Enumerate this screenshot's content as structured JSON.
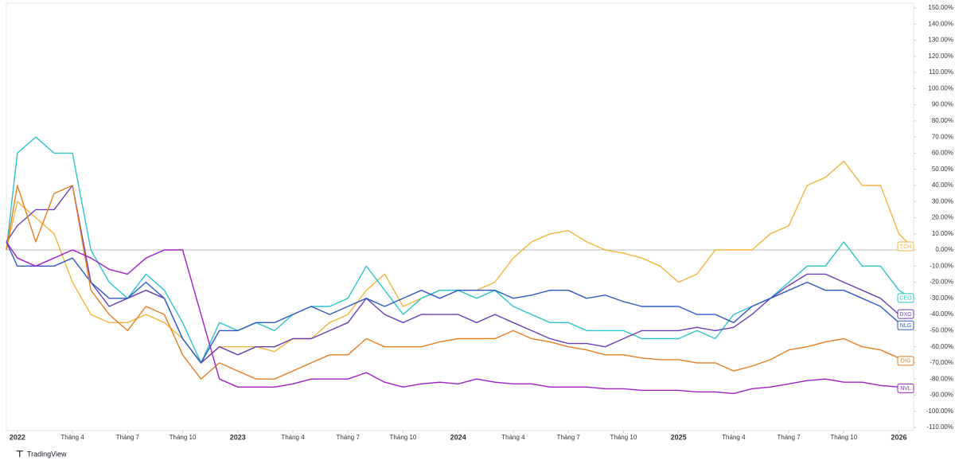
{
  "chart_data": {
    "type": "line",
    "watermark": "TradingView",
    "x": [
      -0.6,
      0,
      1,
      2,
      3,
      4,
      5,
      6,
      7,
      8,
      9,
      10,
      11,
      12,
      13,
      14,
      15,
      16,
      17,
      18,
      19,
      20,
      21,
      22,
      23,
      24,
      25,
      26,
      27,
      28,
      29,
      30,
      31,
      32,
      33,
      34,
      35,
      36,
      37,
      38,
      39,
      40,
      41,
      42,
      43,
      44,
      45,
      46,
      47,
      48,
      48.7
    ],
    "xlim": [
      -0.6,
      48.8
    ],
    "xticks": [
      {
        "value": 0,
        "label": "2022"
      },
      {
        "value": 3,
        "label": "Tháng 4"
      },
      {
        "value": 6,
        "label": "Tháng 7"
      },
      {
        "value": 9,
        "label": "Tháng 10"
      },
      {
        "value": 12,
        "label": "2023"
      },
      {
        "value": 15,
        "label": "Tháng 4"
      },
      {
        "value": 18,
        "label": "Tháng 7"
      },
      {
        "value": 21,
        "label": "Tháng 10"
      },
      {
        "value": 24,
        "label": "2024"
      },
      {
        "value": 27,
        "label": "Tháng 4"
      },
      {
        "value": 30,
        "label": "Tháng 7"
      },
      {
        "value": 33,
        "label": "Tháng 10"
      },
      {
        "value": 36,
        "label": "2025"
      },
      {
        "value": 39,
        "label": "Tháng 4"
      },
      {
        "value": 42,
        "label": "Tháng 7"
      },
      {
        "value": 45,
        "label": "Tháng 10"
      },
      {
        "value": 48,
        "label": "2026"
      }
    ],
    "ylim": [
      -110,
      150
    ],
    "yticks": [
      {
        "value": 150,
        "label": "150.00%"
      },
      {
        "value": 140,
        "label": "140.00%"
      },
      {
        "value": 130,
        "label": "130.00%"
      },
      {
        "value": 120,
        "label": "120.00%"
      },
      {
        "value": 110,
        "label": "110.00%"
      },
      {
        "value": 100,
        "label": "100.00%"
      },
      {
        "value": 90,
        "label": "90.00%"
      },
      {
        "value": 80,
        "label": "80.00%"
      },
      {
        "value": 70,
        "label": "70.00%"
      },
      {
        "value": 60,
        "label": "60.00%"
      },
      {
        "value": 50,
        "label": "50.00%"
      },
      {
        "value": 40,
        "label": "40.00%"
      },
      {
        "value": 30,
        "label": "30.00%"
      },
      {
        "value": 20,
        "label": "20.00%"
      },
      {
        "value": 10,
        "label": "10.00%"
      },
      {
        "value": 0,
        "label": "0.00%"
      },
      {
        "value": -10,
        "label": "-10.00%"
      },
      {
        "value": -20,
        "label": "-20.00%"
      },
      {
        "value": -30,
        "label": "-30.00%"
      },
      {
        "value": -40,
        "label": "-40.00%"
      },
      {
        "value": -50,
        "label": "-50.00%"
      },
      {
        "value": -60,
        "label": "-60.00%"
      },
      {
        "value": -70,
        "label": "-70.00%"
      },
      {
        "value": -80,
        "label": "-80.00%"
      },
      {
        "value": -90,
        "label": "-90.00%"
      },
      {
        "value": -100,
        "label": "-100.00%"
      },
      {
        "value": -110,
        "label": "-110.00%"
      }
    ],
    "series": [
      {
        "name": "TCH",
        "color": "#f2b53f",
        "values": [
          0,
          30,
          20,
          10,
          -20,
          -40,
          -45,
          -45,
          -40,
          -45,
          -55,
          -70,
          -60,
          -60,
          -60,
          -63,
          -55,
          -55,
          -45,
          -40,
          -25,
          -15,
          -35,
          -30,
          -25,
          -25,
          -25,
          -20,
          -5,
          5,
          10,
          12,
          5,
          0,
          -2,
          -5,
          -10,
          -20,
          -15,
          0,
          0,
          0,
          10,
          15,
          40,
          45,
          55,
          40,
          40,
          10,
          2
        ]
      },
      {
        "name": "CEO",
        "color": "#2ec4cc",
        "values": [
          0,
          60,
          70,
          60,
          60,
          0,
          -20,
          -30,
          -15,
          -25,
          -45,
          -70,
          -45,
          -50,
          -45,
          -50,
          -40,
          -35,
          -35,
          -30,
          -10,
          -25,
          -40,
          -30,
          -25,
          -25,
          -30,
          -25,
          -35,
          -40,
          -45,
          -45,
          -50,
          -50,
          -50,
          -55,
          -55,
          -55,
          -50,
          -55,
          -40,
          -35,
          -30,
          -20,
          -10,
          -10,
          5,
          -10,
          -10,
          -25,
          -30
        ]
      },
      {
        "name": "DXG",
        "color": "#6a3fb5",
        "values": [
          5,
          15,
          25,
          25,
          40,
          -20,
          -35,
          -30,
          -25,
          -30,
          -55,
          -70,
          -60,
          -65,
          -60,
          -60,
          -55,
          -55,
          -50,
          -45,
          -30,
          -40,
          -45,
          -40,
          -40,
          -40,
          -45,
          -40,
          -45,
          -50,
          -55,
          -58,
          -58,
          -60,
          -55,
          -50,
          -50,
          -50,
          -48,
          -50,
          -48,
          -40,
          -30,
          -22,
          -15,
          -15,
          -20,
          -25,
          -30,
          -40,
          -40
        ]
      },
      {
        "name": "NLG",
        "color": "#2f5bc4",
        "values": [
          5,
          -10,
          -10,
          -10,
          -5,
          -20,
          -30,
          -30,
          -20,
          -30,
          -55,
          -70,
          -50,
          -50,
          -45,
          -45,
          -40,
          -35,
          -40,
          -35,
          -30,
          -35,
          -30,
          -25,
          -30,
          -25,
          -25,
          -25,
          -30,
          -28,
          -25,
          -25,
          -30,
          -28,
          -32,
          -35,
          -35,
          -35,
          -40,
          -40,
          -45,
          -35,
          -30,
          -25,
          -20,
          -25,
          -25,
          -30,
          -35,
          -45,
          -47
        ]
      },
      {
        "name": "DIG",
        "color": "#e67e22",
        "values": [
          0,
          40,
          5,
          35,
          40,
          -25,
          -40,
          -50,
          -35,
          -40,
          -65,
          -80,
          -70,
          -75,
          -80,
          -80,
          -75,
          -70,
          -65,
          -65,
          -55,
          -60,
          -60,
          -60,
          -57,
          -55,
          -55,
          -55,
          -50,
          -55,
          -57,
          -60,
          -62,
          -65,
          -65,
          -67,
          -68,
          -68,
          -70,
          -70,
          -75,
          -72,
          -68,
          -62,
          -60,
          -57,
          -55,
          -60,
          -62,
          -67,
          -69
        ]
      },
      {
        "name": "NVL",
        "color": "#a020c8",
        "values": [
          5,
          -5,
          -10,
          -5,
          0,
          -5,
          -12,
          -15,
          -5,
          0,
          0,
          -40,
          -80,
          -85,
          -85,
          -85,
          -83,
          -80,
          -80,
          -80,
          -76,
          -82,
          -85,
          -83,
          -82,
          -83,
          -80,
          -82,
          -83,
          -83,
          -85,
          -85,
          -85,
          -86,
          -86,
          -87,
          -87,
          -87,
          -88,
          -88,
          -89,
          -86,
          -85,
          -83,
          -81,
          -80,
          -82,
          -82,
          -84,
          -85,
          -86
        ]
      }
    ]
  }
}
